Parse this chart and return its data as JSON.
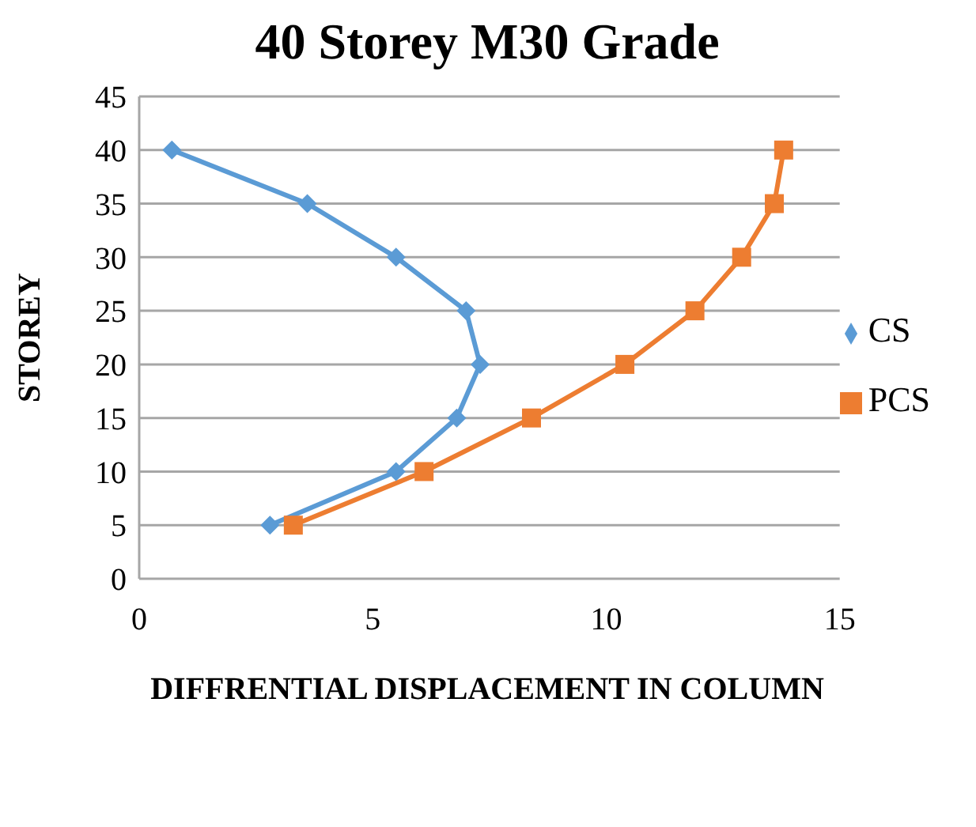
{
  "chart_data": {
    "type": "line",
    "title": "40 Storey M30 Grade",
    "xlabel": "DIFFRENTIAL DISPLACEMENT IN COLUMN",
    "ylabel": "STOREY",
    "xlim": [
      0,
      15
    ],
    "xticks": [
      0,
      5,
      10,
      15
    ],
    "ylim": [
      0,
      45
    ],
    "yticks": [
      0,
      5,
      10,
      15,
      20,
      25,
      30,
      35,
      40,
      45
    ],
    "grid": "y",
    "legend": "right",
    "series": [
      {
        "name": "CS",
        "color": "#5b9bd5",
        "marker": "diamond",
        "x": [
          0.7,
          3.6,
          5.5,
          7.0,
          7.3,
          6.8,
          5.5,
          2.8
        ],
        "values": [
          40,
          35,
          30,
          25,
          20,
          15,
          10,
          5
        ]
      },
      {
        "name": "PCS",
        "color": "#ed7d31",
        "marker": "square",
        "x": [
          3.3,
          6.1,
          8.4,
          10.4,
          11.9,
          12.9,
          13.6,
          13.8
        ],
        "values": [
          5,
          10,
          15,
          20,
          25,
          30,
          35,
          40
        ]
      }
    ]
  }
}
